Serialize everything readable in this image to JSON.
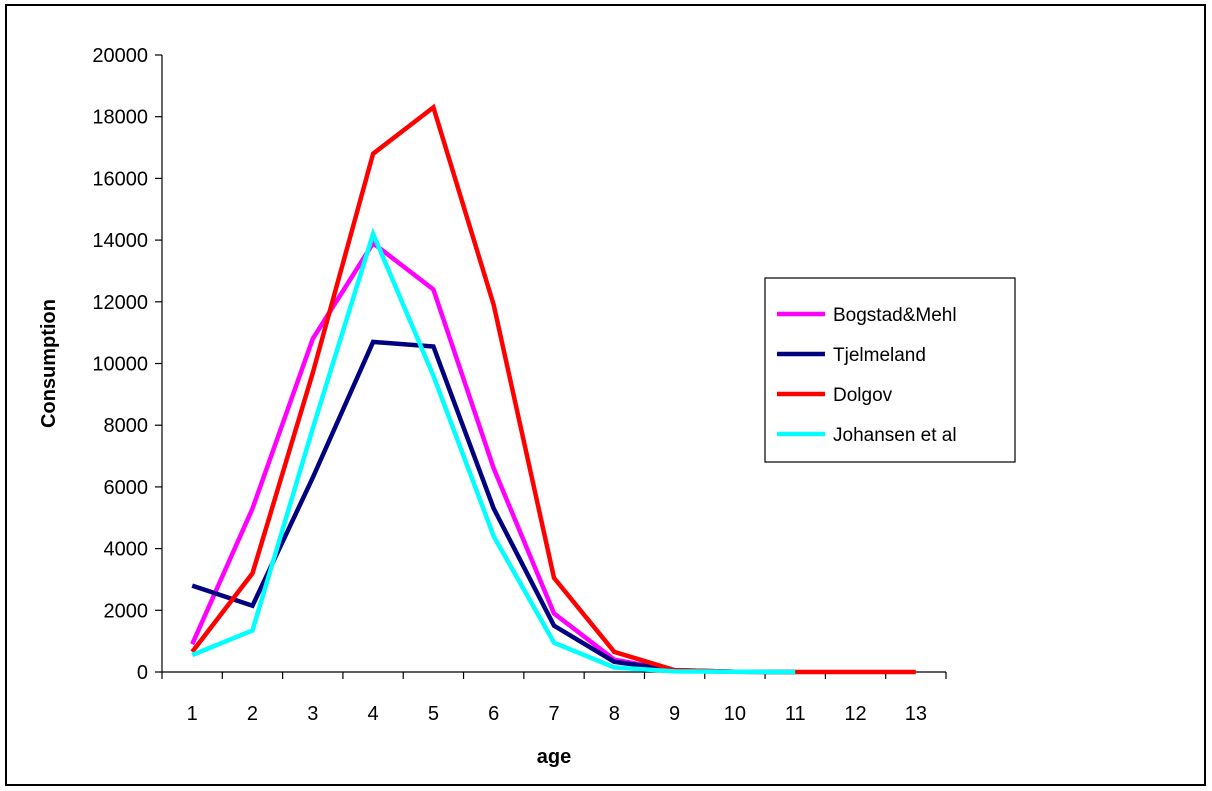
{
  "chart_data": {
    "type": "line",
    "title": "",
    "xlabel": "age",
    "ylabel": "Consumption",
    "x": [
      "1",
      "2",
      "3",
      "4",
      "5",
      "6",
      "7",
      "8",
      "9",
      "10",
      "11",
      "12",
      "13"
    ],
    "ylim": [
      0,
      20000
    ],
    "yticks": [
      "0",
      "2000",
      "4000",
      "6000",
      "8000",
      "10000",
      "12000",
      "14000",
      "16000",
      "18000",
      "20000"
    ],
    "grid": false,
    "legend_position": "right",
    "series": [
      {
        "name": "Bogstad&Mehl",
        "color": "#ff00ff",
        "values": [
          900,
          5300,
          10800,
          13900,
          12400,
          6600,
          1900,
          400,
          50,
          10,
          0,
          null,
          null
        ]
      },
      {
        "name": "Tjelmeland",
        "color": "#000080",
        "values": [
          2800,
          2150,
          6300,
          10700,
          10550,
          5300,
          1500,
          330,
          60,
          10,
          0,
          null,
          null
        ]
      },
      {
        "name": "Dolgov",
        "color": "#ff0000",
        "values": [
          650,
          3200,
          9700,
          16800,
          18300,
          11900,
          3050,
          650,
          60,
          10,
          0,
          0,
          0
        ]
      },
      {
        "name": "Johansen et al",
        "color": "#00ffff",
        "values": [
          550,
          1350,
          7900,
          14200,
          9600,
          4400,
          950,
          150,
          20,
          5,
          0,
          null,
          null
        ]
      }
    ]
  }
}
